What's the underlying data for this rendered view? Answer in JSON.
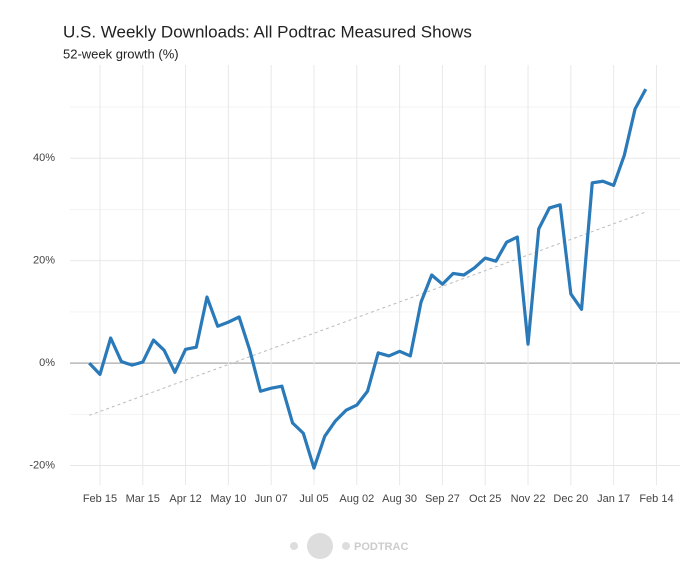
{
  "chart_data": {
    "type": "line",
    "title": "U.S. Weekly Downloads: All Podtrac Measured Shows",
    "subtitle": "52-week growth (%)",
    "x": [
      -1,
      0,
      1,
      2,
      3,
      4,
      5,
      6,
      7,
      8,
      9,
      10,
      11,
      12,
      13,
      14,
      15,
      16,
      17,
      18,
      19,
      20,
      21,
      22,
      23,
      24,
      25,
      26,
      27,
      28,
      29,
      30,
      31,
      32,
      33,
      34,
      35,
      36,
      37,
      38,
      39,
      40,
      41,
      42,
      43,
      44,
      45,
      46,
      47,
      48,
      49,
      50,
      51
    ],
    "series": [
      {
        "name": "52-week growth",
        "color": "#2a7ab9",
        "values": [
          0,
          -2.2,
          4.9,
          0.3,
          -0.4,
          0.2,
          4.5,
          2.5,
          -1.8,
          2.7,
          3.1,
          12.9,
          7.2,
          8,
          9,
          2.5,
          -5.5,
          -4.9,
          -4.5,
          -11.7,
          -13.7,
          -20.5,
          -14.3,
          -11.3,
          -9.2,
          -8.2,
          -5.5,
          2,
          1.4,
          2.3,
          1.4,
          11.9,
          17.2,
          15.4,
          17.5,
          17.2,
          18.6,
          20.5,
          19.9,
          23.6,
          24.6,
          3.7,
          26.2,
          30.3,
          30.9,
          13.5,
          10.5,
          35.2,
          35.5,
          34.7,
          40.6,
          49.6,
          53.5
        ]
      }
    ],
    "trend": {
      "x": [
        -1,
        51
      ],
      "values": [
        -10.2,
        29.5
      ],
      "color": "#bbbbbb"
    },
    "xlim": [
      -2.8,
      54.2
    ],
    "xticks": [
      {
        "value": 0,
        "label": "Feb 15"
      },
      {
        "value": 4,
        "label": "Mar 15"
      },
      {
        "value": 8,
        "label": "Apr 12"
      },
      {
        "value": 12,
        "label": "May 10"
      },
      {
        "value": 16,
        "label": "Jun 07"
      },
      {
        "value": 20,
        "label": "Jul 05"
      },
      {
        "value": 24,
        "label": "Aug 02"
      },
      {
        "value": 28,
        "label": "Aug 30"
      },
      {
        "value": 32,
        "label": "Sep 27"
      },
      {
        "value": 36,
        "label": "Oct 25"
      },
      {
        "value": 40,
        "label": "Nov 22"
      },
      {
        "value": 44,
        "label": "Dec 20"
      },
      {
        "value": 48,
        "label": "Jan 17"
      },
      {
        "value": 52,
        "label": "Feb 14"
      }
    ],
    "ylim": [
      -23.8,
      58.2
    ],
    "yticks": [
      {
        "value": -20,
        "label": "-20%"
      },
      {
        "value": 0,
        "label": "0%"
      },
      {
        "value": 20,
        "label": "20%"
      },
      {
        "value": 40,
        "label": "40%"
      }
    ],
    "yminor": [
      -10,
      10,
      30,
      50
    ],
    "grid": true
  },
  "footer": "PODTRAC"
}
